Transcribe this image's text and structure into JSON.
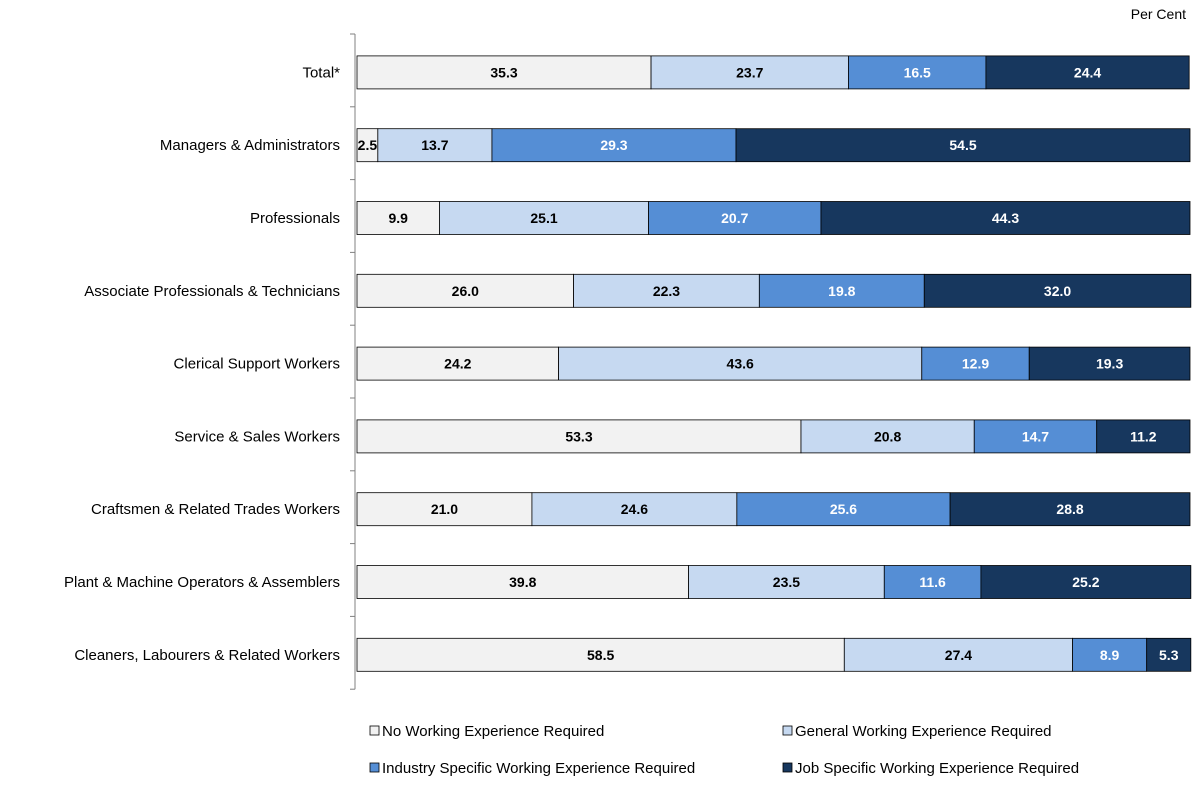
{
  "chart_data": {
    "type": "bar",
    "orientation": "horizontal",
    "stacked": true,
    "unit_label": "Per Cent",
    "categories": [
      "Total*",
      "Managers & Administrators",
      "Professionals",
      "Associate Professionals & Technicians",
      "Clerical Support Workers",
      "Service & Sales Workers",
      "Craftsmen & Related Trades Workers",
      "Plant & Machine Operators & Assemblers",
      "Cleaners, Labourers & Related Workers"
    ],
    "series": [
      {
        "name": "No Working Experience Required",
        "color": "#f2f2f2",
        "label_color": "#000000",
        "values": [
          35.3,
          2.5,
          9.9,
          26.0,
          24.2,
          53.3,
          21.0,
          39.8,
          58.5
        ],
        "labels": [
          "35.3",
          "2.5",
          "9.9",
          "26.0",
          "24.2",
          "53.3",
          "21.0",
          "39.8",
          "58.5"
        ]
      },
      {
        "name": "General Working Experience Required",
        "color": "#c6d9f1",
        "label_color": "#000000",
        "values": [
          23.7,
          13.7,
          25.1,
          22.3,
          43.6,
          20.8,
          24.6,
          23.5,
          27.4
        ],
        "labels": [
          "23.7",
          "13.7",
          "25.1",
          "22.3",
          "43.6",
          "20.8",
          "24.6",
          "23.5",
          "27.4"
        ]
      },
      {
        "name": "Industry Specific Working Experience Required",
        "color": "#558ed5",
        "label_color": "#ffffff",
        "values": [
          16.5,
          29.3,
          20.7,
          19.8,
          12.9,
          14.7,
          25.6,
          11.6,
          8.9
        ],
        "labels": [
          "16.5",
          "29.3",
          "20.7",
          "19.8",
          "12.9",
          "14.7",
          "25.6",
          "11.6",
          "8.9"
        ]
      },
      {
        "name": "Job Specific Working Experience Required",
        "color": "#17375e",
        "label_color": "#ffffff",
        "values": [
          24.4,
          54.5,
          44.3,
          32.0,
          19.3,
          11.2,
          28.8,
          25.2,
          5.3
        ],
        "labels": [
          "24.4",
          "54.5",
          "44.3",
          "32.0",
          "19.3",
          "11.2",
          "28.8",
          "25.2",
          "5.3"
        ]
      }
    ],
    "xlim": [
      0,
      100
    ],
    "grid": false,
    "legend_position": "bottom"
  }
}
